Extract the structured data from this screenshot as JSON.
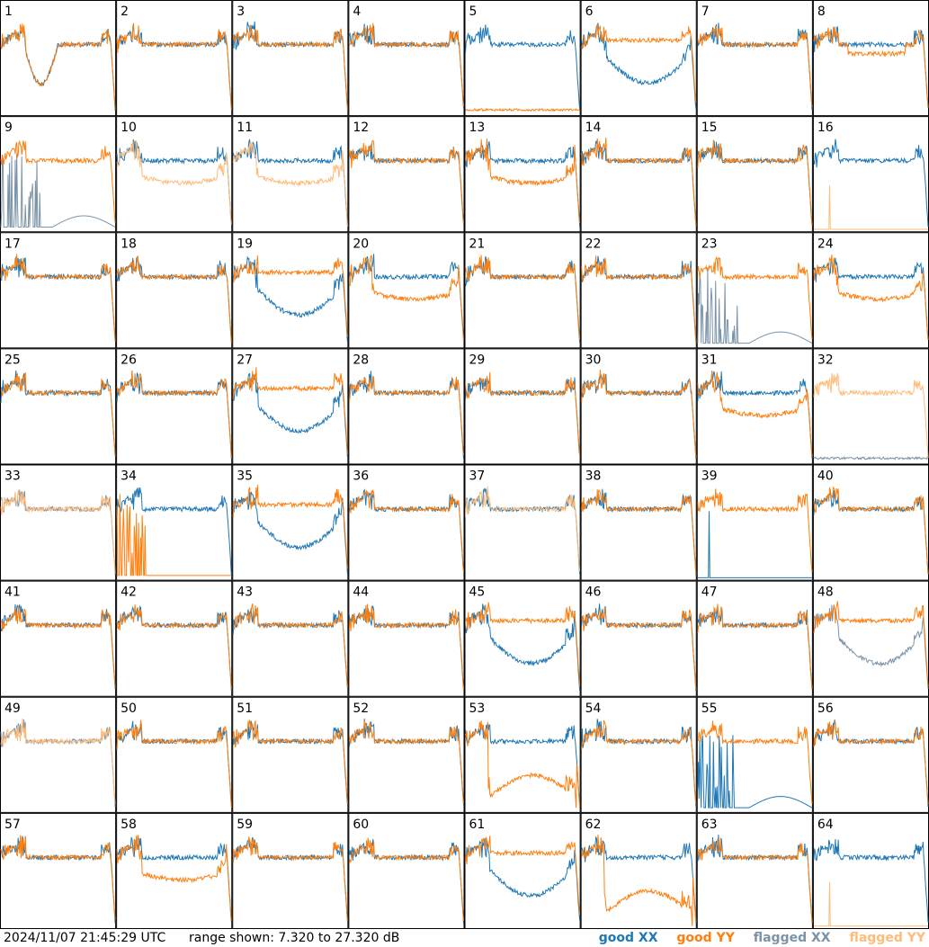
{
  "footer": {
    "timestamp": "2024/11/07 21:45:29 UTC",
    "range_label": "range shown: 7.320 to 27.320 dB",
    "legend": {
      "good_xx": "good XX",
      "good_yy": "good YY",
      "flagged_xx": "flagged XX",
      "flagged_yy": "flagged YY"
    }
  },
  "colors": {
    "good_xx": "#1f77b4",
    "good_yy": "#ff7f0e",
    "flagged_xx": "#7b93a8",
    "flagged_yy": "#ffbb78"
  },
  "chart_data": {
    "type": "line",
    "ylim": [
      7.32,
      27.32
    ],
    "grid": "8x8 small multiples",
    "panels": [
      {
        "label": "1",
        "xx": "good",
        "yy": "good",
        "shape": "deep_dip"
      },
      {
        "label": "2",
        "xx": "good",
        "yy": "good",
        "shape": "flat"
      },
      {
        "label": "3",
        "xx": "good",
        "yy": "good",
        "shape": "flat"
      },
      {
        "label": "4",
        "xx": "good",
        "yy": "good",
        "shape": "flat"
      },
      {
        "label": "5",
        "xx": "good",
        "yy": "good",
        "shape": "yy_low"
      },
      {
        "label": "6",
        "xx": "good",
        "yy": "good",
        "shape": "xx_dip"
      },
      {
        "label": "7",
        "xx": "good",
        "yy": "good",
        "shape": "flat"
      },
      {
        "label": "8",
        "xx": "good",
        "yy": "good",
        "shape": "slight_dip"
      },
      {
        "label": "9",
        "xx": "flagged",
        "yy": "good",
        "shape": "xx_spikes"
      },
      {
        "label": "10",
        "xx": "good",
        "yy": "flagged",
        "shape": "yy_dip"
      },
      {
        "label": "11",
        "xx": "good",
        "yy": "flagged",
        "shape": "yy_dip"
      },
      {
        "label": "12",
        "xx": "good",
        "yy": "good",
        "shape": "flat"
      },
      {
        "label": "13",
        "xx": "good",
        "yy": "good",
        "shape": "yy_dip"
      },
      {
        "label": "14",
        "xx": "good",
        "yy": "good",
        "shape": "flat"
      },
      {
        "label": "15",
        "xx": "good",
        "yy": "good",
        "shape": "flat"
      },
      {
        "label": "16",
        "xx": "good",
        "yy": "flagged",
        "shape": "yy_spike"
      },
      {
        "label": "17",
        "xx": "good",
        "yy": "good",
        "shape": "flat"
      },
      {
        "label": "18",
        "xx": "good",
        "yy": "good",
        "shape": "flat"
      },
      {
        "label": "19",
        "xx": "good",
        "yy": "good",
        "shape": "xx_dip"
      },
      {
        "label": "20",
        "xx": "good",
        "yy": "good",
        "shape": "yy_dip"
      },
      {
        "label": "21",
        "xx": "good",
        "yy": "good",
        "shape": "flat"
      },
      {
        "label": "22",
        "xx": "good",
        "yy": "good",
        "shape": "flat"
      },
      {
        "label": "23",
        "xx": "flagged",
        "yy": "good",
        "shape": "xx_spikes"
      },
      {
        "label": "24",
        "xx": "good",
        "yy": "good",
        "shape": "yy_dip"
      },
      {
        "label": "25",
        "xx": "good",
        "yy": "good",
        "shape": "flat"
      },
      {
        "label": "26",
        "xx": "good",
        "yy": "good",
        "shape": "flat"
      },
      {
        "label": "27",
        "xx": "good",
        "yy": "good",
        "shape": "xx_dip"
      },
      {
        "label": "28",
        "xx": "good",
        "yy": "good",
        "shape": "flat"
      },
      {
        "label": "29",
        "xx": "good",
        "yy": "good",
        "shape": "flat"
      },
      {
        "label": "30",
        "xx": "good",
        "yy": "good",
        "shape": "flat"
      },
      {
        "label": "31",
        "xx": "good",
        "yy": "good",
        "shape": "yy_dip"
      },
      {
        "label": "32",
        "xx": "flagged",
        "yy": "flagged",
        "shape": "xx_low"
      },
      {
        "label": "33",
        "xx": "flagged",
        "yy": "flagged",
        "shape": "flat"
      },
      {
        "label": "34",
        "xx": "good",
        "yy": "good",
        "shape": "yy_spikes"
      },
      {
        "label": "35",
        "xx": "good",
        "yy": "good",
        "shape": "xx_dip"
      },
      {
        "label": "36",
        "xx": "good",
        "yy": "good",
        "shape": "flat"
      },
      {
        "label": "37",
        "xx": "good",
        "yy": "flagged",
        "shape": "flat"
      },
      {
        "label": "38",
        "xx": "good",
        "yy": "good",
        "shape": "flat"
      },
      {
        "label": "39",
        "xx": "good",
        "yy": "good",
        "shape": "xx_spike"
      },
      {
        "label": "40",
        "xx": "good",
        "yy": "good",
        "shape": "flat"
      },
      {
        "label": "41",
        "xx": "good",
        "yy": "good",
        "shape": "flat"
      },
      {
        "label": "42",
        "xx": "good",
        "yy": "good",
        "shape": "flat"
      },
      {
        "label": "43",
        "xx": "good",
        "yy": "good",
        "shape": "flat"
      },
      {
        "label": "44",
        "xx": "good",
        "yy": "good",
        "shape": "flat"
      },
      {
        "label": "45",
        "xx": "good",
        "yy": "good",
        "shape": "xx_dip"
      },
      {
        "label": "46",
        "xx": "good",
        "yy": "good",
        "shape": "flat"
      },
      {
        "label": "47",
        "xx": "good",
        "yy": "good",
        "shape": "flat"
      },
      {
        "label": "48",
        "xx": "flagged",
        "yy": "good",
        "shape": "xx_dip"
      },
      {
        "label": "49",
        "xx": "flagged",
        "yy": "flagged",
        "shape": "flat"
      },
      {
        "label": "50",
        "xx": "good",
        "yy": "good",
        "shape": "flat"
      },
      {
        "label": "51",
        "xx": "good",
        "yy": "good",
        "shape": "flat"
      },
      {
        "label": "52",
        "xx": "good",
        "yy": "good",
        "shape": "flat"
      },
      {
        "label": "53",
        "xx": "good",
        "yy": "good",
        "shape": "yy_deep_dip"
      },
      {
        "label": "54",
        "xx": "good",
        "yy": "good",
        "shape": "flat"
      },
      {
        "label": "55",
        "xx": "good",
        "yy": "good",
        "shape": "xx_spikes"
      },
      {
        "label": "56",
        "xx": "good",
        "yy": "good",
        "shape": "flat"
      },
      {
        "label": "57",
        "xx": "good",
        "yy": "good",
        "shape": "flat"
      },
      {
        "label": "58",
        "xx": "good",
        "yy": "good",
        "shape": "yy_dip"
      },
      {
        "label": "59",
        "xx": "good",
        "yy": "good",
        "shape": "flat"
      },
      {
        "label": "60",
        "xx": "good",
        "yy": "good",
        "shape": "flat"
      },
      {
        "label": "61",
        "xx": "good",
        "yy": "good",
        "shape": "xx_dip"
      },
      {
        "label": "62",
        "xx": "good",
        "yy": "good",
        "shape": "yy_deep_dip"
      },
      {
        "label": "63",
        "xx": "good",
        "yy": "good",
        "shape": "flat"
      },
      {
        "label": "64",
        "xx": "good",
        "yy": "flagged",
        "shape": "yy_spike"
      }
    ]
  }
}
